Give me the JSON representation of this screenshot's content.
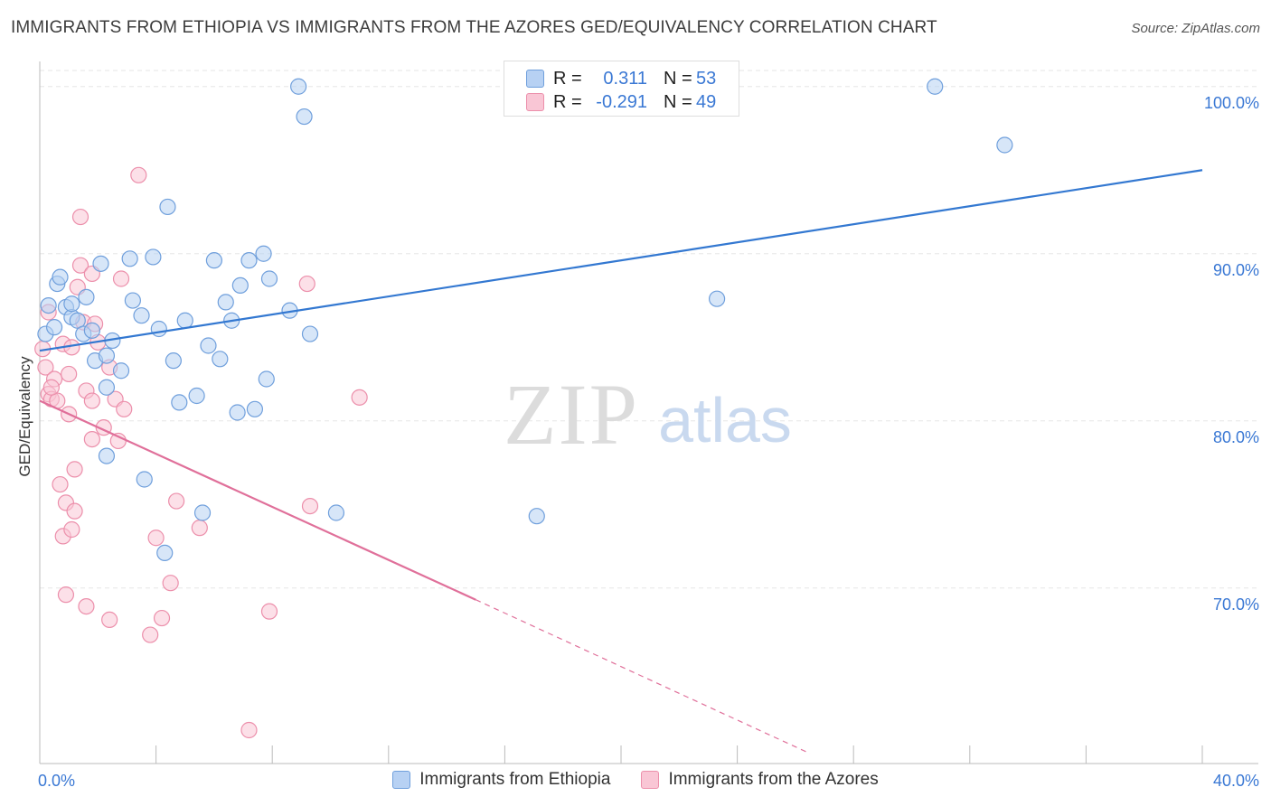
{
  "title": "IMMIGRANTS FROM ETHIOPIA VS IMMIGRANTS FROM THE AZORES GED/EQUIVALENCY CORRELATION CHART",
  "source": "Source: ZipAtlas.com",
  "watermark": {
    "zip": "ZIP",
    "atlas": "atlas"
  },
  "stats": [
    {
      "r_label": "R =",
      "r_value": "0.311",
      "n_label": "N =",
      "n_value": "53"
    },
    {
      "r_label": "R =",
      "r_value": "-0.291",
      "n_label": "N =",
      "n_value": "49"
    }
  ],
  "colors": {
    "ethiopia_fill": "#b7d1f3",
    "ethiopia_stroke": "#6f9fdc",
    "ethiopia_line": "#3378d1",
    "azores_fill": "#f9c6d5",
    "azores_stroke": "#ec8fab",
    "azores_line": "#e0709a",
    "tick_label": "#3a78d4",
    "grid": "#e6e6e6"
  },
  "chart_data": {
    "type": "scatter",
    "xlabel": "",
    "ylabel": "GED/Equivalency",
    "xlim": [
      0,
      40
    ],
    "ylim": [
      59.5,
      101.5
    ],
    "x_tick_labels": [
      {
        "value": 0,
        "label": "0.0%"
      },
      {
        "value": 40,
        "label": "40.0%"
      }
    ],
    "x_minor_ticks": [
      0,
      4,
      8,
      12,
      16,
      20,
      24,
      28,
      32,
      36,
      40
    ],
    "y_ticks": [
      {
        "value": 100,
        "label": "100.0%"
      },
      {
        "value": 90,
        "label": "90.0%"
      },
      {
        "value": 80,
        "label": "80.0%"
      },
      {
        "value": 70,
        "label": "70.0%"
      }
    ],
    "grid": true,
    "legend_position": "bottom-center",
    "series": [
      {
        "name": "Immigrants from Ethiopia",
        "trend": {
          "x": [
            0,
            40
          ],
          "y": [
            84.2,
            95.0
          ],
          "dashed_from_x": null
        },
        "points": [
          [
            0.2,
            85.2
          ],
          [
            0.3,
            86.9
          ],
          [
            0.5,
            85.6
          ],
          [
            0.6,
            88.2
          ],
          [
            0.7,
            88.6
          ],
          [
            0.9,
            86.8
          ],
          [
            1.1,
            86.2
          ],
          [
            1.3,
            86.0
          ],
          [
            1.5,
            85.2
          ],
          [
            1.6,
            87.4
          ],
          [
            1.8,
            85.4
          ],
          [
            1.9,
            83.6
          ],
          [
            2.1,
            89.4
          ],
          [
            2.3,
            83.9
          ],
          [
            2.5,
            84.8
          ],
          [
            2.8,
            83.0
          ],
          [
            3.1,
            89.7
          ],
          [
            3.2,
            87.2
          ],
          [
            3.5,
            86.3
          ],
          [
            3.9,
            89.8
          ],
          [
            4.1,
            85.5
          ],
          [
            4.4,
            92.8
          ],
          [
            4.6,
            83.6
          ],
          [
            4.8,
            81.1
          ],
          [
            5.0,
            86.0
          ],
          [
            5.4,
            81.5
          ],
          [
            5.8,
            84.5
          ],
          [
            6.0,
            89.6
          ],
          [
            6.2,
            83.7
          ],
          [
            6.4,
            87.1
          ],
          [
            6.6,
            86.0
          ],
          [
            6.8,
            80.5
          ],
          [
            6.9,
            88.1
          ],
          [
            7.2,
            89.6
          ],
          [
            7.4,
            80.7
          ],
          [
            7.7,
            90.0
          ],
          [
            7.8,
            82.5
          ],
          [
            7.9,
            88.5
          ],
          [
            8.6,
            86.6
          ],
          [
            8.9,
            100.0
          ],
          [
            9.1,
            98.2
          ],
          [
            9.3,
            85.2
          ],
          [
            10.2,
            74.5
          ],
          [
            2.3,
            82.0
          ],
          [
            2.3,
            77.9
          ],
          [
            3.6,
            76.5
          ],
          [
            4.3,
            72.1
          ],
          [
            5.6,
            74.5
          ],
          [
            17.1,
            74.3
          ],
          [
            23.3,
            87.3
          ],
          [
            30.8,
            100.0
          ],
          [
            33.2,
            96.5
          ],
          [
            1.1,
            87.0
          ]
        ]
      },
      {
        "name": "Immigrants from the Azores",
        "trend": {
          "x": [
            0,
            15
          ],
          "y": [
            81.2,
            69.3
          ],
          "dashed_to_x": 26.5,
          "dashed_to_y": 60.1
        },
        "points": [
          [
            0.1,
            84.3
          ],
          [
            0.2,
            83.2
          ],
          [
            0.3,
            86.5
          ],
          [
            0.3,
            81.6
          ],
          [
            0.4,
            81.3
          ],
          [
            0.5,
            82.5
          ],
          [
            0.6,
            81.2
          ],
          [
            0.7,
            76.2
          ],
          [
            0.8,
            84.6
          ],
          [
            0.8,
            73.1
          ],
          [
            0.9,
            75.1
          ],
          [
            0.9,
            69.6
          ],
          [
            1.0,
            82.8
          ],
          [
            1.0,
            80.4
          ],
          [
            1.1,
            84.4
          ],
          [
            1.1,
            73.5
          ],
          [
            1.2,
            77.1
          ],
          [
            1.2,
            74.6
          ],
          [
            1.4,
            89.3
          ],
          [
            1.4,
            92.2
          ],
          [
            1.5,
            85.9
          ],
          [
            1.6,
            68.9
          ],
          [
            1.6,
            81.8
          ],
          [
            1.8,
            88.8
          ],
          [
            1.8,
            81.2
          ],
          [
            1.8,
            78.9
          ],
          [
            1.9,
            85.8
          ],
          [
            2.0,
            84.7
          ],
          [
            2.2,
            79.6
          ],
          [
            2.4,
            83.2
          ],
          [
            2.4,
            68.1
          ],
          [
            2.6,
            81.3
          ],
          [
            2.7,
            78.8
          ],
          [
            2.8,
            88.5
          ],
          [
            2.9,
            80.7
          ],
          [
            3.4,
            94.7
          ],
          [
            3.8,
            67.2
          ],
          [
            4.0,
            73.0
          ],
          [
            4.2,
            68.2
          ],
          [
            4.5,
            70.3
          ],
          [
            4.7,
            75.2
          ],
          [
            5.5,
            73.6
          ],
          [
            7.2,
            61.5
          ],
          [
            7.9,
            68.6
          ],
          [
            9.2,
            88.2
          ],
          [
            9.3,
            74.9
          ],
          [
            11.0,
            81.4
          ],
          [
            0.4,
            82.0
          ],
          [
            1.3,
            88.0
          ]
        ]
      }
    ]
  }
}
